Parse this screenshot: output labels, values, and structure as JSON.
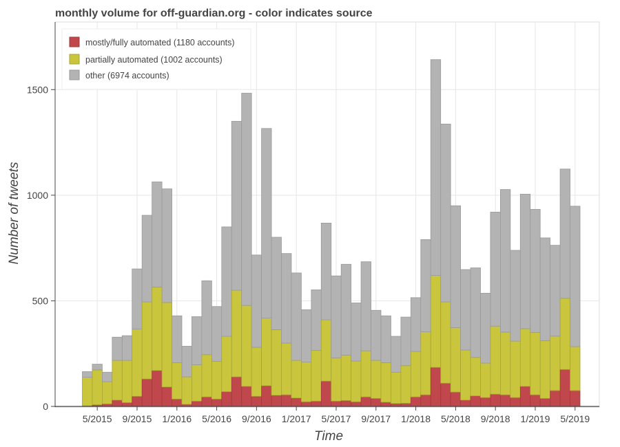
{
  "chart_data": {
    "type": "bar",
    "stacked": true,
    "title": "monthly volume for off-guardian.org - color indicates source",
    "xlabel": "Time",
    "ylabel": "Number of tweets",
    "ylim": [
      0,
      1820
    ],
    "yticks": [
      0,
      500,
      1000,
      1500
    ],
    "xticks": [
      {
        "index": 1,
        "label": "5/2015"
      },
      {
        "index": 5,
        "label": "9/2015"
      },
      {
        "index": 9,
        "label": "1/2016"
      },
      {
        "index": 13,
        "label": "5/2016"
      },
      {
        "index": 17,
        "label": "9/2016"
      },
      {
        "index": 21,
        "label": "1/2017"
      },
      {
        "index": 25,
        "label": "5/2017"
      },
      {
        "index": 29,
        "label": "9/2017"
      },
      {
        "index": 33,
        "label": "1/2018"
      },
      {
        "index": 37,
        "label": "5/2018"
      },
      {
        "index": 41,
        "label": "9/2018"
      },
      {
        "index": 45,
        "label": "1/2019"
      },
      {
        "index": 49,
        "label": "5/2019"
      }
    ],
    "grid": true,
    "legend_position": "top-left",
    "categories": [
      "4/2015",
      "5/2015",
      "6/2015",
      "7/2015",
      "8/2015",
      "9/2015",
      "10/2015",
      "11/2015",
      "12/2015",
      "1/2016",
      "2/2016",
      "3/2016",
      "4/2016",
      "5/2016",
      "6/2016",
      "7/2016",
      "8/2016",
      "9/2016",
      "10/2016",
      "11/2016",
      "12/2016",
      "1/2017",
      "2/2017",
      "3/2017",
      "4/2017",
      "5/2017",
      "6/2017",
      "7/2017",
      "8/2017",
      "9/2017",
      "10/2017",
      "11/2017",
      "12/2017",
      "1/2018",
      "2/2018",
      "3/2018",
      "4/2018",
      "5/2018",
      "6/2018",
      "7/2018",
      "8/2018",
      "9/2018",
      "10/2018",
      "11/2018",
      "12/2018",
      "1/2019",
      "2/2019",
      "3/2019",
      "4/2019",
      "5/2019",
      "6/2019"
    ],
    "series": [
      {
        "name": "mostly/fully automated (1180 accounts)",
        "color": "#c0474b",
        "values": [
          3,
          8,
          12,
          30,
          18,
          48,
          130,
          170,
          92,
          35,
          10,
          25,
          45,
          35,
          70,
          140,
          95,
          48,
          98,
          53,
          55,
          40,
          22,
          25,
          120,
          25,
          28,
          22,
          45,
          38,
          20,
          14,
          15,
          45,
          55,
          185,
          110,
          68,
          30,
          50,
          42,
          58,
          55,
          42,
          95,
          55,
          38,
          75,
          175,
          75,
          0
        ]
      },
      {
        "name": "partially automated (1002 accounts)",
        "color": "#c9c63e",
        "values": [
          135,
          165,
          105,
          188,
          200,
          318,
          365,
          395,
          400,
          172,
          130,
          172,
          200,
          178,
          262,
          410,
          383,
          232,
          320,
          310,
          245,
          178,
          188,
          240,
          290,
          205,
          215,
          193,
          218,
          180,
          187,
          148,
          178,
          215,
          298,
          435,
          385,
          305,
          237,
          182,
          163,
          322,
          297,
          267,
          273,
          295,
          273,
          258,
          337,
          208,
          0
        ]
      },
      {
        "name": "other (6974 accounts)",
        "color": "#b3b3b3",
        "values": [
          27,
          27,
          45,
          110,
          117,
          285,
          410,
          498,
          538,
          222,
          145,
          228,
          350,
          260,
          518,
          800,
          1005,
          437,
          898,
          438,
          424,
          414,
          248,
          287,
          458,
          388,
          430,
          275,
          422,
          237,
          222,
          170,
          230,
          255,
          437,
          1022,
          842,
          577,
          381,
          424,
          331,
          540,
          675,
          430,
          637,
          583,
          487,
          430,
          612,
          665,
          0
        ]
      }
    ]
  }
}
